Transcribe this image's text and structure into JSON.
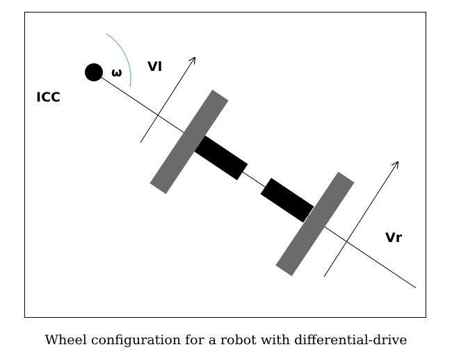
{
  "diagram": {
    "labels": {
      "icc": "ICC",
      "omega": "ω",
      "vl": "Vl",
      "vr": "Vr"
    },
    "colors": {
      "wheel": "#6b6b6b",
      "motor": "#000000",
      "arc": "#8fb3d9",
      "line": "#000000"
    }
  },
  "caption": "Wheel configuration for a robot with differential-drive"
}
